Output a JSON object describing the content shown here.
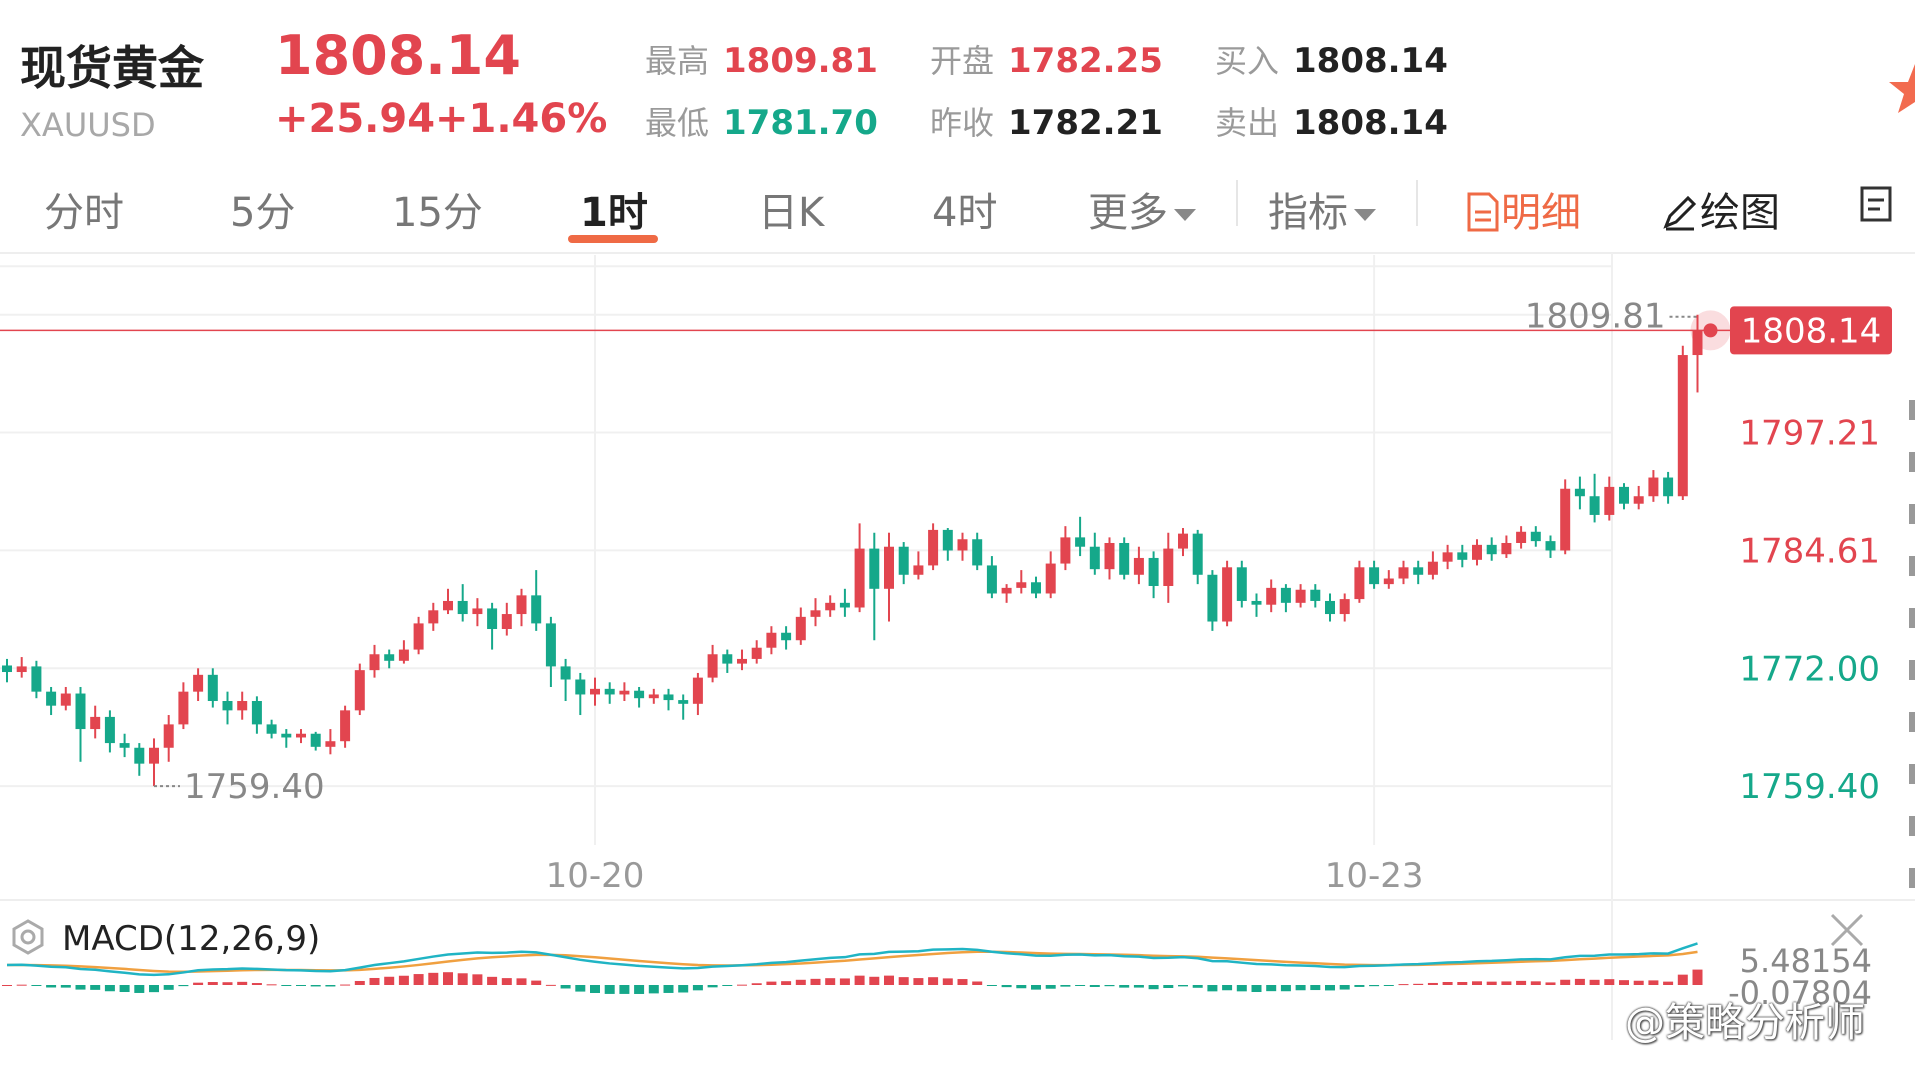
{
  "quote": {
    "name": "现货黄金",
    "code": "XAUUSD",
    "price": "1808.14",
    "change": "+25.94",
    "change_pct": "+1.46%",
    "high_label": "最高",
    "high": "1809.81",
    "low_label": "最低",
    "low": "1781.70",
    "open_label": "开盘",
    "open": "1782.25",
    "prev_close_label": "昨收",
    "prev_close": "1782.21",
    "bid_label": "买入",
    "bid": "1808.14",
    "ask_label": "卖出",
    "ask": "1808.14"
  },
  "tabs": {
    "t1": "分时",
    "t2": "5分",
    "t3": "15分",
    "t4": "1时",
    "t5": "日K",
    "t6": "4时",
    "more": "更多",
    "indicator": "指标",
    "detail": "明细",
    "draw": "绘图",
    "active": "1时"
  },
  "colors": {
    "up": "#e2454f",
    "down": "#15a88a",
    "accent": "#ef6a45",
    "dif": "#20b4c4",
    "dea": "#f0a040"
  },
  "watermark": "@策略分析师",
  "chart_data": {
    "type": "candlestick",
    "title": "",
    "xlabel": "",
    "ylabel": "",
    "y_ticks": [
      "1797.21",
      "1784.61",
      "1772.00",
      "1759.40"
    ],
    "ylim": [
      1753.1,
      1816.2
    ],
    "x_date_labels": [
      {
        "label": "10-20",
        "index": 40
      },
      {
        "label": "10-23",
        "index": 93
      }
    ],
    "current_price": "1808.14",
    "max_annotation": "1809.81",
    "min_annotation": "1759.40",
    "grid": true,
    "candles": [
      [
        1772.3,
        1771.6,
        1773.0,
        1770.5
      ],
      [
        1771.6,
        1772.2,
        1773.2,
        1771.0
      ],
      [
        1772.2,
        1769.5,
        1772.8,
        1768.8
      ],
      [
        1769.5,
        1768.0,
        1770.0,
        1767.0
      ],
      [
        1768.0,
        1769.3,
        1770.0,
        1767.5
      ],
      [
        1769.3,
        1765.5,
        1770.0,
        1762.0
      ],
      [
        1765.5,
        1766.8,
        1768.0,
        1764.5
      ],
      [
        1766.8,
        1764.0,
        1767.5,
        1763.0
      ],
      [
        1764.0,
        1763.5,
        1765.0,
        1762.5
      ],
      [
        1763.5,
        1761.8,
        1764.0,
        1760.5
      ],
      [
        1761.8,
        1763.5,
        1764.5,
        1759.4
      ],
      [
        1763.5,
        1766.0,
        1767.0,
        1762.0
      ],
      [
        1766.0,
        1769.5,
        1770.5,
        1765.5
      ],
      [
        1769.5,
        1771.3,
        1772.0,
        1768.5
      ],
      [
        1771.3,
        1768.5,
        1772.0,
        1767.8
      ],
      [
        1768.5,
        1767.5,
        1769.5,
        1766.0
      ],
      [
        1767.5,
        1768.5,
        1769.5,
        1766.5
      ],
      [
        1768.5,
        1766.0,
        1769.0,
        1765.0
      ],
      [
        1766.0,
        1765.0,
        1766.5,
        1764.5
      ],
      [
        1765.0,
        1764.6,
        1765.5,
        1763.5
      ],
      [
        1764.6,
        1765.0,
        1765.5,
        1764.0
      ],
      [
        1765.0,
        1763.6,
        1765.2,
        1763.2
      ],
      [
        1763.6,
        1764.2,
        1765.5,
        1762.8
      ],
      [
        1764.2,
        1767.5,
        1768.0,
        1763.5
      ],
      [
        1767.5,
        1771.8,
        1772.5,
        1767.0
      ],
      [
        1771.8,
        1773.5,
        1774.5,
        1771.0
      ],
      [
        1773.5,
        1772.8,
        1774.0,
        1772.0
      ],
      [
        1772.8,
        1774.0,
        1775.0,
        1772.5
      ],
      [
        1774.0,
        1776.8,
        1777.5,
        1773.5
      ],
      [
        1776.8,
        1778.2,
        1779.0,
        1776.0
      ],
      [
        1778.2,
        1779.2,
        1780.5,
        1777.8
      ],
      [
        1779.2,
        1777.8,
        1781.0,
        1777.0
      ],
      [
        1777.8,
        1778.4,
        1779.5,
        1776.5
      ],
      [
        1778.4,
        1776.2,
        1779.0,
        1774.0
      ],
      [
        1776.2,
        1777.8,
        1779.0,
        1775.5
      ],
      [
        1777.8,
        1779.8,
        1780.5,
        1776.5
      ],
      [
        1779.8,
        1776.8,
        1782.5,
        1776.0
      ],
      [
        1776.8,
        1772.2,
        1777.5,
        1770.0
      ],
      [
        1772.2,
        1770.8,
        1773.0,
        1768.5
      ],
      [
        1770.8,
        1769.2,
        1771.5,
        1767.0
      ],
      [
        1769.2,
        1769.8,
        1771.0,
        1768.0
      ],
      [
        1769.8,
        1769.2,
        1770.5,
        1768.2
      ],
      [
        1769.2,
        1769.6,
        1770.5,
        1768.5
      ],
      [
        1769.6,
        1768.8,
        1770.0,
        1767.8
      ],
      [
        1768.8,
        1769.2,
        1769.8,
        1768.2
      ],
      [
        1769.2,
        1768.6,
        1769.8,
        1767.5
      ],
      [
        1768.6,
        1768.2,
        1769.2,
        1766.5
      ],
      [
        1768.2,
        1771.0,
        1771.5,
        1767.0
      ],
      [
        1771.0,
        1773.5,
        1774.5,
        1770.5
      ],
      [
        1773.5,
        1772.5,
        1774.0,
        1771.5
      ],
      [
        1772.5,
        1773.0,
        1774.0,
        1771.8
      ],
      [
        1773.0,
        1774.2,
        1775.0,
        1772.5
      ],
      [
        1774.2,
        1775.8,
        1776.5,
        1773.5
      ],
      [
        1775.8,
        1775.0,
        1776.5,
        1774.0
      ],
      [
        1775.0,
        1777.5,
        1778.5,
        1774.5
      ],
      [
        1777.5,
        1778.2,
        1779.5,
        1776.5
      ],
      [
        1778.2,
        1779.0,
        1779.8,
        1777.5
      ],
      [
        1779.0,
        1778.5,
        1780.5,
        1777.5
      ],
      [
        1778.5,
        1784.8,
        1787.5,
        1778.0
      ],
      [
        1784.8,
        1780.5,
        1786.5,
        1775.0
      ],
      [
        1780.5,
        1785.0,
        1786.5,
        1777.0
      ],
      [
        1785.0,
        1782.0,
        1785.5,
        1781.0
      ],
      [
        1782.0,
        1783.0,
        1784.5,
        1781.5
      ],
      [
        1783.0,
        1786.8,
        1787.5,
        1782.5
      ],
      [
        1786.8,
        1784.6,
        1787.0,
        1783.5
      ],
      [
        1784.6,
        1785.8,
        1786.5,
        1783.5
      ],
      [
        1785.8,
        1783.0,
        1786.5,
        1782.5
      ],
      [
        1783.0,
        1780.0,
        1784.0,
        1779.5
      ],
      [
        1780.0,
        1780.6,
        1781.0,
        1779.0
      ],
      [
        1780.6,
        1781.2,
        1782.5,
        1780.0
      ],
      [
        1781.2,
        1780.0,
        1781.8,
        1779.5
      ],
      [
        1780.0,
        1783.2,
        1784.5,
        1779.5
      ],
      [
        1783.2,
        1786.0,
        1787.2,
        1782.5
      ],
      [
        1786.0,
        1785.0,
        1788.2,
        1784.0
      ],
      [
        1785.0,
        1782.6,
        1786.5,
        1782.0
      ],
      [
        1782.6,
        1785.4,
        1786.0,
        1781.5
      ],
      [
        1785.4,
        1782.0,
        1786.0,
        1781.5
      ],
      [
        1782.0,
        1783.8,
        1785.0,
        1781.0
      ],
      [
        1783.8,
        1780.8,
        1784.5,
        1779.5
      ],
      [
        1780.8,
        1784.8,
        1786.5,
        1779.0
      ],
      [
        1784.8,
        1786.4,
        1787.0,
        1784.0
      ],
      [
        1786.4,
        1782.0,
        1786.8,
        1781.0
      ],
      [
        1782.0,
        1777.0,
        1782.5,
        1776.0
      ],
      [
        1777.0,
        1782.8,
        1783.5,
        1776.5
      ],
      [
        1782.8,
        1779.2,
        1783.5,
        1778.5
      ],
      [
        1779.2,
        1778.8,
        1780.0,
        1777.5
      ],
      [
        1778.8,
        1780.6,
        1781.5,
        1778.0
      ],
      [
        1780.6,
        1779.0,
        1781.0,
        1778.0
      ],
      [
        1779.0,
        1780.4,
        1781.0,
        1778.5
      ],
      [
        1780.4,
        1779.2,
        1781.0,
        1778.5
      ],
      [
        1779.2,
        1777.8,
        1780.0,
        1777.0
      ],
      [
        1777.8,
        1779.4,
        1780.0,
        1777.0
      ],
      [
        1779.4,
        1782.8,
        1783.5,
        1779.0
      ],
      [
        1782.8,
        1781.0,
        1783.5,
        1780.5
      ],
      [
        1781.0,
        1781.6,
        1782.5,
        1780.5
      ],
      [
        1781.6,
        1782.8,
        1783.5,
        1781.0
      ],
      [
        1782.8,
        1782.0,
        1783.5,
        1781.0
      ],
      [
        1782.0,
        1783.4,
        1784.5,
        1781.5
      ],
      [
        1783.4,
        1784.4,
        1785.2,
        1782.6
      ],
      [
        1784.4,
        1783.6,
        1785.2,
        1782.8
      ],
      [
        1783.6,
        1785.2,
        1785.8,
        1783.0
      ],
      [
        1785.2,
        1784.2,
        1786.0,
        1783.5
      ],
      [
        1784.2,
        1785.4,
        1786.2,
        1783.8
      ],
      [
        1785.4,
        1786.6,
        1787.2,
        1784.8
      ],
      [
        1786.6,
        1785.6,
        1787.2,
        1785.0
      ],
      [
        1785.6,
        1784.6,
        1786.2,
        1783.8
      ],
      [
        1784.6,
        1791.2,
        1792.2,
        1784.2
      ],
      [
        1791.2,
        1790.4,
        1792.5,
        1789.0
      ],
      [
        1790.4,
        1788.4,
        1792.8,
        1787.6
      ],
      [
        1788.4,
        1791.4,
        1792.5,
        1787.8
      ],
      [
        1791.4,
        1789.6,
        1791.8,
        1789.0
      ],
      [
        1789.6,
        1790.4,
        1791.5,
        1789.0
      ],
      [
        1790.4,
        1792.4,
        1793.2,
        1789.8
      ],
      [
        1792.4,
        1790.4,
        1793.0,
        1789.6
      ],
      [
        1790.4,
        1805.5,
        1806.5,
        1790.0
      ],
      [
        1805.5,
        1808.14,
        1809.81,
        1801.5
      ]
    ],
    "macd": {
      "name": "MACD(12,26,9)",
      "values_shown": [
        "5.48154",
        "-0.07804"
      ]
    }
  }
}
